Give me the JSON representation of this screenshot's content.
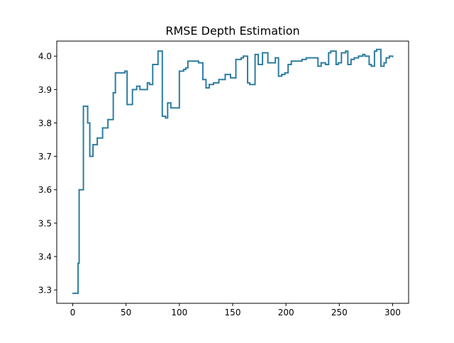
{
  "chart_data": {
    "type": "line",
    "title": "RMSE Depth Estimation",
    "xlabel": "",
    "ylabel": "",
    "xlim": [
      -15,
      315
    ],
    "ylim": [
      3.26,
      4.045
    ],
    "x_ticks": [
      0,
      50,
      100,
      150,
      200,
      250,
      300
    ],
    "y_ticks": [
      3.3,
      3.4,
      3.5,
      3.6,
      3.7,
      3.8,
      3.9,
      4.0
    ],
    "y_tick_labels": [
      "3.3",
      "3.4",
      "3.5",
      "3.6",
      "3.7",
      "3.8",
      "3.9",
      "4.0"
    ],
    "grid": false,
    "legend": "none",
    "line_color": "#2c7da0",
    "series": [
      {
        "step": "post",
        "x": [
          0,
          5,
          6,
          10,
          14,
          16,
          19,
          23,
          28,
          33,
          38,
          40,
          49,
          51,
          56,
          60,
          63,
          70,
          72,
          75,
          80,
          84,
          87,
          89,
          92,
          100,
          104,
          106,
          108,
          113,
          118,
          122,
          125,
          128,
          132,
          137,
          143,
          148,
          153,
          158,
          160,
          164,
          166,
          171,
          174,
          178,
          180,
          183,
          185,
          190,
          193,
          196,
          199,
          202,
          205,
          211,
          215,
          219,
          222,
          226,
          230,
          233,
          237,
          240,
          242,
          247,
          249,
          252,
          256,
          258,
          261,
          264,
          268,
          272,
          274,
          278,
          280,
          283,
          285,
          289,
          292,
          294,
          297,
          300
        ],
        "y": [
          3.29,
          3.38,
          3.6,
          3.85,
          3.8,
          3.7,
          3.735,
          3.755,
          3.785,
          3.81,
          3.89,
          3.95,
          3.955,
          3.855,
          3.9,
          3.91,
          3.9,
          3.92,
          3.915,
          3.975,
          4.015,
          3.82,
          3.815,
          3.86,
          3.845,
          3.955,
          3.96,
          3.965,
          3.985,
          3.985,
          3.98,
          3.93,
          3.905,
          3.915,
          3.92,
          3.93,
          3.945,
          3.935,
          3.99,
          3.995,
          4.0,
          3.92,
          3.915,
          4.005,
          3.975,
          4.01,
          4.01,
          3.98,
          3.98,
          3.995,
          3.94,
          3.945,
          3.95,
          3.975,
          3.985,
          3.985,
          3.99,
          3.995,
          3.995,
          3.995,
          3.97,
          3.98,
          3.975,
          4.01,
          4.015,
          3.975,
          3.98,
          4.01,
          4.015,
          3.975,
          3.99,
          3.995,
          4.0,
          4.005,
          4.0,
          3.975,
          3.97,
          4.015,
          4.02,
          3.97,
          3.98,
          3.995,
          4.0,
          3.998
        ]
      }
    ]
  }
}
